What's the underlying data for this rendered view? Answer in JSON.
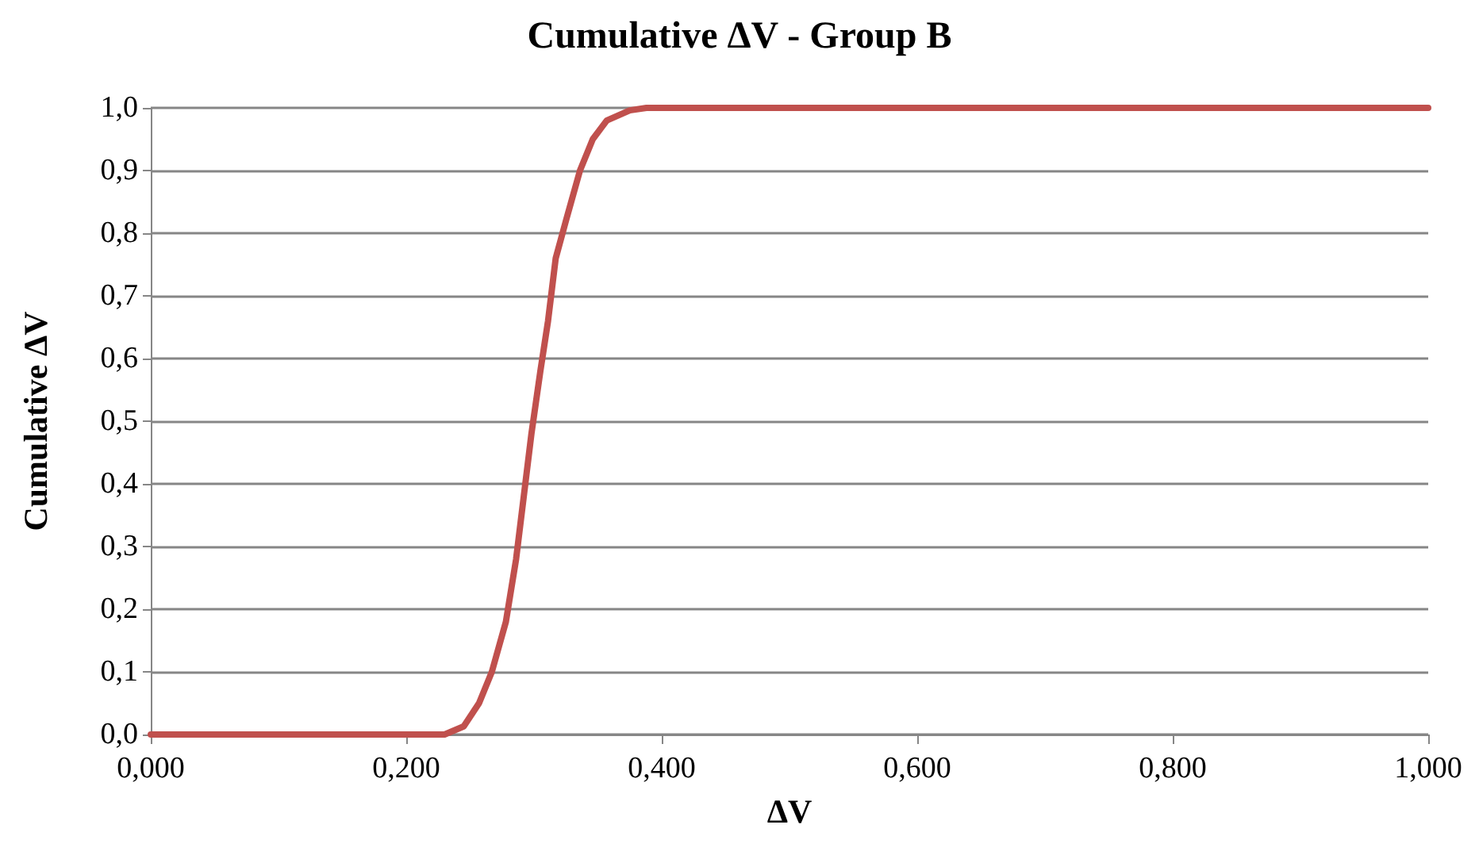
{
  "chart_data": {
    "type": "line",
    "title": "Cumulative ΔV - Group B",
    "xlabel": "ΔV",
    "ylabel": "Cumulative ΔV",
    "x": [
      0,
      0.1,
      0.2,
      0.23,
      0.245,
      0.257,
      0.267,
      0.278,
      0.286,
      0.292,
      0.298,
      0.305,
      0.311,
      0.317,
      0.325,
      0.336,
      0.346,
      0.357,
      0.375,
      0.388,
      0.5,
      0.7,
      0.9,
      1.0
    ],
    "series": [
      {
        "color": "#c0504d",
        "values": [
          0,
          0,
          0,
          0,
          0.013,
          0.05,
          0.1,
          0.18,
          0.28,
          0.38,
          0.48,
          0.58,
          0.66,
          0.76,
          0.82,
          0.9,
          0.95,
          0.98,
          0.996,
          1.0,
          1.0,
          1.0,
          1.0,
          1.0
        ]
      }
    ],
    "xlim": [
      0,
      1
    ],
    "xticks": [
      {
        "value": 0,
        "label": "0,000"
      },
      {
        "value": 0.2,
        "label": "0,200"
      },
      {
        "value": 0.4,
        "label": "0,400"
      },
      {
        "value": 0.6,
        "label": "0,600"
      },
      {
        "value": 0.8,
        "label": "0,800"
      },
      {
        "value": 1,
        "label": "1,000"
      }
    ],
    "ylim": [
      0,
      1
    ],
    "yticks": [
      {
        "value": 0,
        "label": "0,0"
      },
      {
        "value": 0.1,
        "label": "0,1"
      },
      {
        "value": 0.2,
        "label": "0,2"
      },
      {
        "value": 0.3,
        "label": "0,3"
      },
      {
        "value": 0.4,
        "label": "0,4"
      },
      {
        "value": 0.5,
        "label": "0,5"
      },
      {
        "value": 0.6,
        "label": "0,6"
      },
      {
        "value": 0.7,
        "label": "0,7"
      },
      {
        "value": 0.8,
        "label": "0,8"
      },
      {
        "value": 0.9,
        "label": "0,9"
      },
      {
        "value": 1,
        "label": "1,0"
      }
    ],
    "grid": "y",
    "marker": "none",
    "line_style": "solid"
  }
}
